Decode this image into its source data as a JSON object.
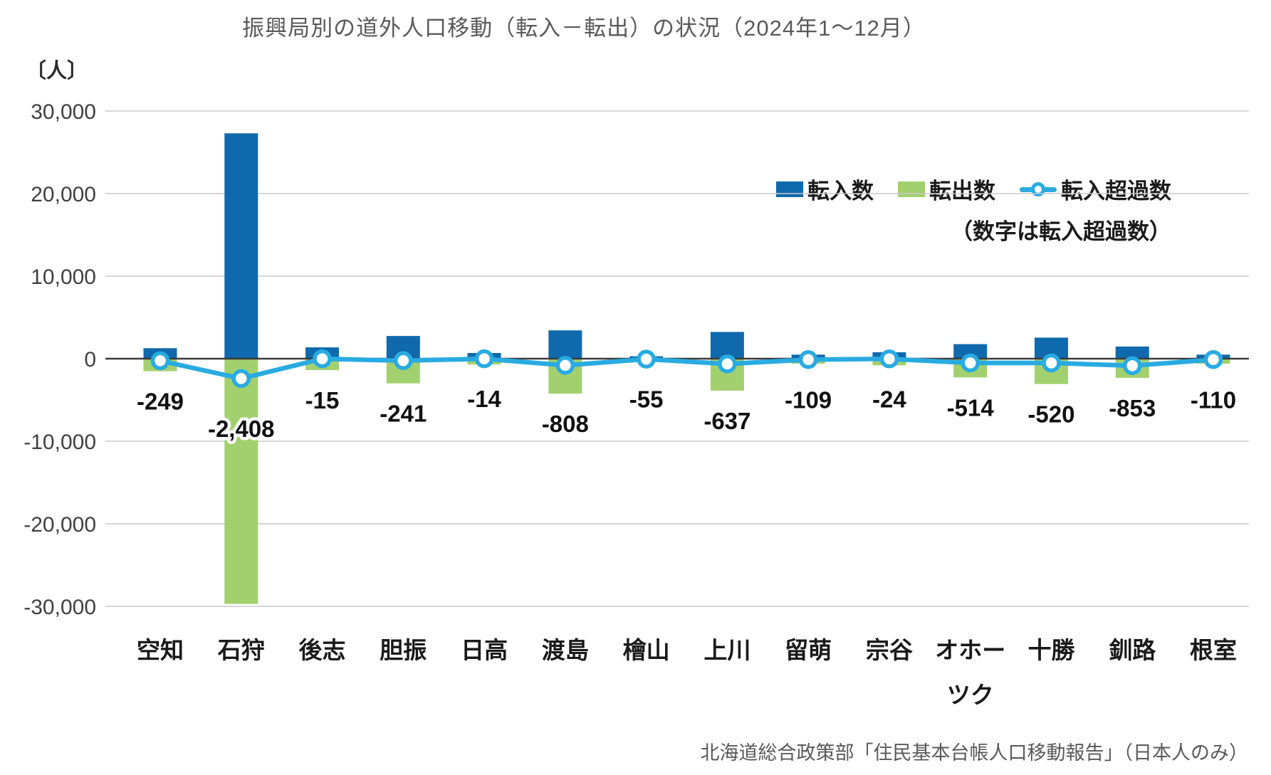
{
  "chart_data": {
    "type": "bar",
    "subtype": "bar-and-line-combo",
    "title": "振興局別の道外人口移動（転入－転出）の状況（2024年1～12月）",
    "unit_label": "〔人〕",
    "note": "（数字は転入超過数）",
    "source": "北海道総合政策部「住民基本台帳人口移動報告」（日本人のみ）",
    "categories": [
      "空知",
      "石狩",
      "後志",
      "胆振",
      "日高",
      "渡島",
      "檜山",
      "上川",
      "留萌",
      "宗谷",
      "オホーツク",
      "十勝",
      "釧路",
      "根室"
    ],
    "series": [
      {
        "name": "転入数",
        "type": "bar",
        "color": "#1069ac",
        "values": [
          1270,
          27300,
          1370,
          2750,
          690,
          3430,
          290,
          3240,
          490,
          780,
          1760,
          2550,
          1470,
          490
        ]
      },
      {
        "name": "転出数",
        "type": "bar",
        "color": "#a3d06e",
        "values": [
          1519,
          29708,
          1385,
          2991,
          704,
          4238,
          345,
          3877,
          599,
          804,
          2274,
          3070,
          2323,
          600
        ]
      },
      {
        "name": "転入超過数",
        "type": "line",
        "color": "#29abe2",
        "values": [
          -249,
          -2408,
          -15,
          -241,
          -14,
          -808,
          -55,
          -637,
          -109,
          -24,
          -514,
          -520,
          -853,
          -110
        ]
      }
    ],
    "data_labels": [
      "-249",
      "-2,408",
      "-15",
      "-241",
      "-14",
      "-808",
      "-55",
      "-637",
      "-109",
      "-24",
      "-514",
      "-520",
      "-853",
      "-110"
    ],
    "ylim": [
      -30000,
      30000
    ],
    "yticks": [
      {
        "label": "30,000",
        "value": 30000
      },
      {
        "label": "20,000",
        "value": 20000
      },
      {
        "label": "10,000",
        "value": 10000
      },
      {
        "label": "0",
        "value": 0
      },
      {
        "label": "-10,000",
        "value": -10000
      },
      {
        "label": "-20,000",
        "value": -20000
      },
      {
        "label": "-30,000",
        "value": -30000
      }
    ],
    "grid": true,
    "legend_position": "top-right"
  }
}
